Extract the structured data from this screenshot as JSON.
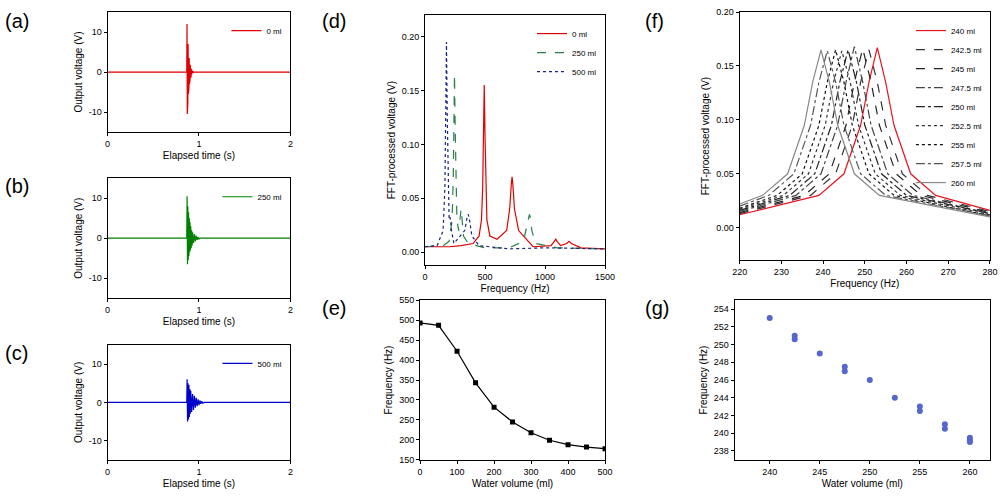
{
  "chart_data": [
    {
      "type": "line",
      "title": "(a)",
      "x_label": "Elapsed time (s)",
      "y_label": "Output voltage (V)",
      "xlim": [
        0,
        2
      ],
      "ylim": [
        -15,
        15
      ],
      "xticks": [
        0,
        1,
        2
      ],
      "yticks": [
        -10,
        0,
        10
      ],
      "grid": false,
      "legend": "top right",
      "series": [
        {
          "name": "0 ml",
          "color": "#e00000",
          "line_style": "solid",
          "x": [
            0,
            0.866,
            0.869,
            0.872,
            0.875,
            0.878,
            0.881,
            0.884,
            0.887,
            0.89,
            0.893,
            0.896,
            0.899,
            0.902,
            0.905,
            0.908,
            0.911,
            0.914,
            0.917,
            0.92,
            0.925,
            0.93,
            0.935,
            0.94,
            0.95,
            2
          ],
          "values": [
            0,
            0,
            12,
            -10.5,
            9.5,
            -8,
            7,
            -5.5,
            5,
            -4,
            3.5,
            -3,
            2.5,
            -2,
            1.8,
            -1.5,
            1.2,
            -1,
            0.8,
            -0.6,
            0.4,
            -0.3,
            0.2,
            -0.1,
            0,
            0
          ]
        }
      ]
    },
    {
      "type": "line",
      "title": "(b)",
      "x_label": "Elapsed time (s)",
      "y_label": "Output voltage (V)",
      "xlim": [
        0,
        2
      ],
      "ylim": [
        -15,
        15
      ],
      "xticks": [
        0,
        1,
        2
      ],
      "yticks": [
        -10,
        0,
        10
      ],
      "grid": false,
      "legend": "top right",
      "series": [
        {
          "name": "250 ml",
          "color": "#008000",
          "line_style": "solid",
          "x": [
            0,
            0.866,
            0.87,
            0.874,
            0.878,
            0.882,
            0.886,
            0.89,
            0.894,
            0.898,
            0.902,
            0.906,
            0.91,
            0.915,
            0.92,
            0.925,
            0.93,
            0.94,
            0.95,
            0.96,
            0.97,
            0.98,
            0.99,
            1.0,
            1.01,
            2
          ],
          "values": [
            0,
            0,
            10.5,
            -6.5,
            8,
            -5.5,
            6.5,
            -4.5,
            5,
            -3.5,
            4,
            -3,
            3,
            -2.5,
            2,
            -1.8,
            1.5,
            -1.2,
            1,
            -0.8,
            0.6,
            -0.4,
            0.3,
            -0.2,
            0,
            0
          ]
        }
      ]
    },
    {
      "type": "line",
      "title": "(c)",
      "x_label": "Elapsed time (s)",
      "y_label": "Output voltage (V)",
      "xlim": [
        0,
        2
      ],
      "ylim": [
        -15,
        15
      ],
      "xticks": [
        0,
        1,
        2
      ],
      "yticks": [
        -10,
        0,
        10
      ],
      "grid": false,
      "legend": "top right",
      "series": [
        {
          "name": "500 ml",
          "color": "#0000cc",
          "line_style": "solid",
          "x": [
            0,
            0.866,
            0.87,
            0.875,
            0.88,
            0.885,
            0.89,
            0.895,
            0.9,
            0.905,
            0.91,
            0.92,
            0.93,
            0.94,
            0.95,
            0.96,
            0.97,
            0.98,
            0.99,
            1.0,
            1.01,
            1.02,
            1.03,
            1.04,
            1.06,
            2
          ],
          "values": [
            0,
            0,
            6,
            -5,
            5,
            -4.5,
            4.5,
            -3.8,
            3.5,
            -3,
            3,
            -2.5,
            2.2,
            -2,
            1.7,
            -1.4,
            1.2,
            -1,
            0.8,
            -0.7,
            0.5,
            -0.4,
            0.3,
            -0.2,
            0,
            0
          ]
        }
      ]
    },
    {
      "type": "line",
      "title": "(d)",
      "x_label": "Frequency (Hz)",
      "y_label": "FFT-processed voltage (V)",
      "xlim": [
        0,
        1500
      ],
      "ylim": [
        -0.012,
        0.22
      ],
      "xticks": [
        0,
        500,
        1000,
        1500
      ],
      "yticks": [
        {
          "value": 0,
          "label": "0.00"
        },
        {
          "value": 0.05,
          "label": "0.05"
        },
        {
          "value": 0.1,
          "label": "0.10"
        },
        {
          "value": 0.15,
          "label": "0.15"
        },
        {
          "value": 0.2,
          "label": "0.20"
        }
      ],
      "grid": false,
      "legend": "top right",
      "series": [
        {
          "name": "0 ml",
          "color": "#e00000",
          "line_style": "solid",
          "x": [
            0,
            100,
            200,
            300,
            400,
            450,
            470,
            480,
            487,
            493,
            499,
            506,
            515,
            540,
            600,
            680,
            705,
            718,
            725,
            732,
            745,
            780,
            900,
            1050,
            1080,
            1090,
            1100,
            1130,
            1180,
            1200,
            1220,
            1300,
            1500
          ],
          "values": [
            0.005,
            0.005,
            0.005,
            0.006,
            0.008,
            0.015,
            0.03,
            0.06,
            0.11,
            0.155,
            0.11,
            0.06,
            0.03,
            0.015,
            0.012,
            0.02,
            0.04,
            0.062,
            0.07,
            0.062,
            0.04,
            0.02,
            0.005,
            0.006,
            0.01,
            0.012,
            0.01,
            0.006,
            0.008,
            0.01,
            0.008,
            0.004,
            0.003
          ]
        },
        {
          "name": "250 ml",
          "color": "#2e7d4f",
          "line_style": "dash",
          "x": [
            0,
            150,
            200,
            225,
            235,
            240,
            245,
            250,
            255,
            265,
            280,
            295,
            300,
            305,
            320,
            360,
            500,
            700,
            820,
            850,
            865,
            870,
            875,
            890,
            920,
            1100,
            1500
          ],
          "values": [
            0.005,
            0.006,
            0.01,
            0.03,
            0.07,
            0.12,
            0.165,
            0.12,
            0.07,
            0.03,
            0.02,
            0.035,
            0.04,
            0.035,
            0.015,
            0.008,
            0.004,
            0.004,
            0.01,
            0.025,
            0.033,
            0.035,
            0.033,
            0.02,
            0.008,
            0.004,
            0.003
          ]
        },
        {
          "name": "500 ml",
          "color": "#1a237e",
          "line_style": "dot",
          "x": [
            0,
            100,
            150,
            165,
            172,
            178,
            184,
            191,
            200,
            210,
            220,
            240,
            330,
            350,
            360,
            370,
            390,
            450,
            700,
            1000,
            1500
          ],
          "values": [
            0.005,
            0.006,
            0.02,
            0.06,
            0.13,
            0.195,
            0.13,
            0.06,
            0.03,
            0.032,
            0.02,
            0.008,
            0.02,
            0.032,
            0.035,
            0.03,
            0.015,
            0.006,
            0.003,
            0.004,
            0.003
          ]
        }
      ]
    },
    {
      "type": "line",
      "title": "(e)",
      "x_label": "Water volume (ml)",
      "y_label": "Frequency (Hz)",
      "xlim": [
        0,
        500
      ],
      "ylim": [
        150,
        550
      ],
      "xticks": [
        0,
        100,
        200,
        300,
        400,
        500
      ],
      "yticks": [
        150,
        200,
        250,
        300,
        350,
        400,
        450,
        500,
        550
      ],
      "grid": false,
      "series": [
        {
          "color": "#000000",
          "line_style": "solid",
          "marker": "square",
          "x": [
            0,
            50,
            100,
            150,
            200,
            250,
            300,
            350,
            400,
            450,
            500
          ],
          "values": [
            493,
            487,
            422,
            343,
            282,
            245,
            218,
            199,
            188,
            182,
            178
          ]
        }
      ]
    },
    {
      "type": "line",
      "title": "(f)",
      "x_label": "Frequency (Hz)",
      "y_label": "FFT-processed voltage (V)",
      "xlim": [
        220,
        280
      ],
      "ylim": [
        -0.03,
        0.2
      ],
      "xticks": [
        220,
        230,
        240,
        250,
        260,
        270,
        280
      ],
      "yticks": [
        {
          "value": 0,
          "label": "0.00"
        },
        {
          "value": 0.05,
          "label": "0.05"
        },
        {
          "value": 0.1,
          "label": "0.10"
        },
        {
          "value": 0.15,
          "label": "0.15"
        },
        {
          "value": 0.2,
          "label": "0.20"
        }
      ],
      "grid": false,
      "legend": "top right",
      "series": [
        {
          "name": "240 ml",
          "color": "#e8141e",
          "line_style": "solid",
          "x": [
            220,
            239,
            245,
            249,
            251,
            253,
            255,
            257,
            261,
            267,
            280
          ],
          "values": [
            0.012,
            0.03,
            0.05,
            0.095,
            0.135,
            0.167,
            0.135,
            0.095,
            0.05,
            0.03,
            0.016
          ]
        },
        {
          "name": "242.5 ml",
          "color": "#333333",
          "line_style": "dash",
          "x": [
            220,
            237,
            243,
            247,
            249,
            251,
            253,
            255,
            259,
            265,
            280
          ],
          "values": [
            0.013,
            0.03,
            0.05,
            0.095,
            0.135,
            0.165,
            0.135,
            0.095,
            0.05,
            0.03,
            0.015
          ]
        },
        {
          "name": "245 ml",
          "color": "#222222",
          "line_style": "dash",
          "x": [
            220,
            235.5,
            241.5,
            245.5,
            247.5,
            249.5,
            251.5,
            253.5,
            257.5,
            263.5,
            280
          ],
          "values": [
            0.014,
            0.03,
            0.05,
            0.095,
            0.135,
            0.166,
            0.135,
            0.095,
            0.05,
            0.03,
            0.014
          ]
        },
        {
          "name": "247.5 ml",
          "color": "#444444",
          "line_style": "dashdot",
          "x": [
            220,
            233.5,
            239.5,
            243.5,
            245.5,
            247.5,
            249.5,
            251.5,
            255.5,
            261.5,
            280
          ],
          "values": [
            0.015,
            0.03,
            0.05,
            0.095,
            0.135,
            0.168,
            0.135,
            0.095,
            0.05,
            0.03,
            0.013
          ]
        },
        {
          "name": "250 ml",
          "color": "#222222",
          "line_style": "dashdot",
          "x": [
            220,
            232,
            238,
            242,
            244,
            246,
            248,
            250,
            254,
            260,
            280
          ],
          "values": [
            0.016,
            0.03,
            0.05,
            0.095,
            0.135,
            0.165,
            0.135,
            0.095,
            0.05,
            0.03,
            0.013
          ]
        },
        {
          "name": "252.5 ml",
          "color": "#333333",
          "line_style": "dot",
          "x": [
            220,
            230.5,
            236.5,
            240.5,
            242.5,
            244.5,
            246.5,
            248.5,
            252.5,
            258.5,
            280
          ],
          "values": [
            0.017,
            0.03,
            0.05,
            0.095,
            0.135,
            0.164,
            0.135,
            0.095,
            0.05,
            0.03,
            0.012
          ]
        },
        {
          "name": "255 ml",
          "color": "#111111",
          "line_style": "dot",
          "x": [
            220,
            229,
            235,
            239,
            241,
            243,
            245,
            247,
            251,
            257,
            280
          ],
          "values": [
            0.018,
            0.03,
            0.05,
            0.095,
            0.135,
            0.165,
            0.135,
            0.095,
            0.05,
            0.03,
            0.011
          ]
        },
        {
          "name": "257.5 ml",
          "color": "#555555",
          "line_style": "dashdot",
          "x": [
            220,
            227,
            233,
            237,
            239,
            241,
            243,
            245,
            249,
            255,
            280
          ],
          "values": [
            0.02,
            0.03,
            0.05,
            0.095,
            0.135,
            0.164,
            0.135,
            0.095,
            0.05,
            0.03,
            0.011
          ]
        },
        {
          "name": "260 ml",
          "color": "#888888",
          "line_style": "solid",
          "x": [
            220,
            225.5,
            231.5,
            235.5,
            237.5,
            239.5,
            241.5,
            243.5,
            247.5,
            253.5,
            280
          ],
          "values": [
            0.022,
            0.03,
            0.05,
            0.095,
            0.135,
            0.165,
            0.135,
            0.095,
            0.05,
            0.03,
            0.01
          ]
        }
      ]
    },
    {
      "type": "scatter",
      "title": "(g)",
      "x_label": "Water volume (ml)",
      "y_label": "Frequency (Hz)",
      "xlim": [
        236.5,
        262
      ],
      "ylim": [
        237,
        255
      ],
      "xticks": [
        240,
        245,
        250,
        255,
        260
      ],
      "yticks": [
        238,
        240,
        242,
        244,
        246,
        248,
        250,
        252,
        254
      ],
      "grid": false,
      "series": [
        {
          "color": "#5566cc",
          "marker": "circle",
          "x": [
            240,
            242.5,
            242.5,
            245,
            247.5,
            247.5,
            250,
            252.5,
            255,
            255,
            257.5,
            257.5,
            260,
            260,
            260
          ],
          "values": [
            253,
            251,
            250.6,
            249,
            247.5,
            247,
            246,
            244,
            243,
            242.5,
            241,
            240.5,
            239.5,
            239.2,
            239
          ]
        }
      ]
    }
  ]
}
